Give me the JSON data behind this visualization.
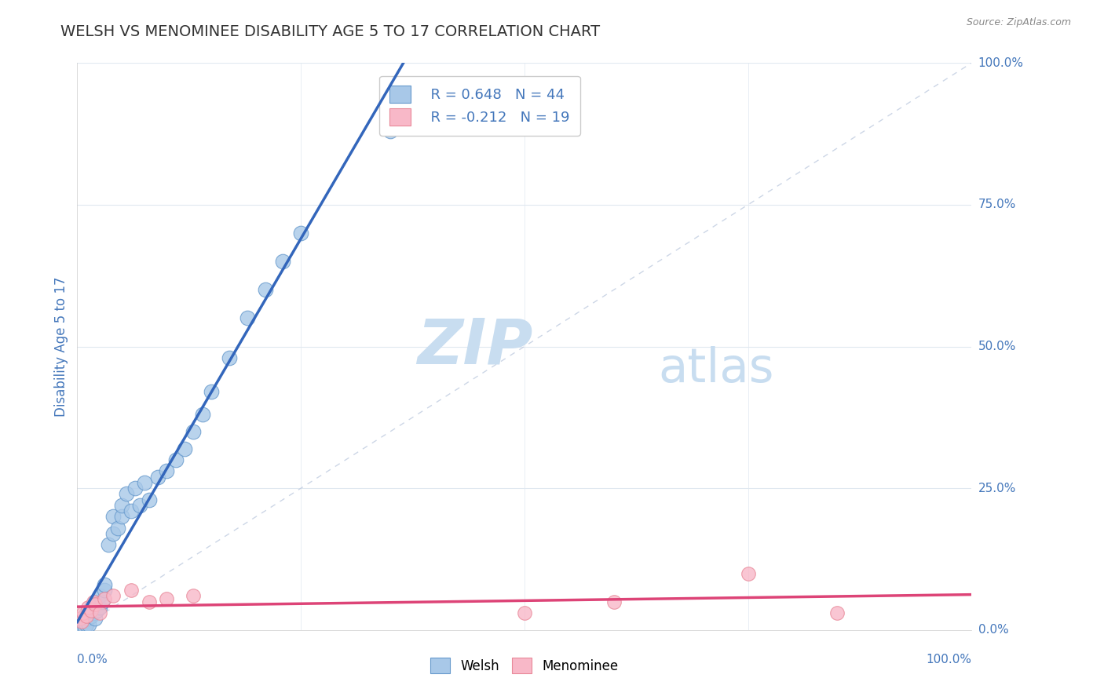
{
  "title": "WELSH VS MENOMINEE DISABILITY AGE 5 TO 17 CORRELATION CHART",
  "source": "Source: ZipAtlas.com",
  "ylabel": "Disability Age 5 to 17",
  "ytick_labels": [
    "0.0%",
    "25.0%",
    "50.0%",
    "75.0%",
    "100.0%"
  ],
  "ytick_values": [
    0,
    25,
    50,
    75,
    100
  ],
  "xtick_labels": [
    "0.0%",
    "100.0%"
  ],
  "xlim": [
    0,
    100
  ],
  "ylim": [
    0,
    100
  ],
  "welsh_color": "#a8c8e8",
  "welsh_edge_color": "#6699cc",
  "menominee_color": "#f8b8c8",
  "menominee_edge_color": "#e88898",
  "welsh_line_color": "#3366bb",
  "menominee_line_color": "#dd4477",
  "diag_line_color": "#c0cce0",
  "legend_welsh_r": "R = 0.648",
  "legend_welsh_n": "N = 44",
  "legend_menominee_r": "R = -0.212",
  "legend_menominee_n": "N = 19",
  "welsh_x": [
    0.3,
    0.5,
    0.7,
    0.8,
    1.0,
    1.0,
    1.2,
    1.3,
    1.5,
    1.5,
    1.8,
    2.0,
    2.0,
    2.2,
    2.5,
    2.5,
    2.8,
    3.0,
    3.0,
    3.5,
    4.0,
    4.0,
    4.5,
    5.0,
    5.0,
    5.5,
    6.0,
    6.5,
    7.0,
    7.5,
    8.0,
    9.0,
    10.0,
    11.0,
    12.0,
    13.0,
    14.0,
    15.0,
    17.0,
    19.0,
    21.0,
    23.0,
    25.0,
    35.0
  ],
  "welsh_y": [
    1.0,
    2.0,
    1.5,
    0.5,
    1.0,
    3.0,
    2.0,
    1.0,
    2.5,
    4.0,
    3.0,
    2.0,
    5.0,
    3.5,
    4.0,
    6.0,
    5.0,
    7.0,
    8.0,
    15.0,
    17.0,
    20.0,
    18.0,
    20.0,
    22.0,
    24.0,
    21.0,
    25.0,
    22.0,
    26.0,
    23.0,
    27.0,
    28.0,
    30.0,
    32.0,
    35.0,
    38.0,
    42.0,
    48.0,
    55.0,
    60.0,
    65.0,
    70.0,
    88.0
  ],
  "menominee_x": [
    0.3,
    0.5,
    0.7,
    1.0,
    1.2,
    1.5,
    1.8,
    2.0,
    2.5,
    3.0,
    4.0,
    6.0,
    8.0,
    10.0,
    13.0,
    50.0,
    60.0,
    75.0,
    85.0
  ],
  "menominee_y": [
    2.0,
    1.5,
    3.0,
    2.5,
    4.0,
    3.5,
    5.0,
    4.5,
    3.0,
    5.5,
    6.0,
    7.0,
    5.0,
    5.5,
    6.0,
    3.0,
    5.0,
    10.0,
    3.0
  ],
  "background_color": "#ffffff",
  "grid_color": "#e0e8f0",
  "title_color": "#333333",
  "source_color": "#888888",
  "axis_label_color": "#4477bb",
  "tick_label_color": "#4477bb",
  "watermark_zip_color": "#c8ddf0",
  "watermark_atlas_color": "#c8ddf0"
}
